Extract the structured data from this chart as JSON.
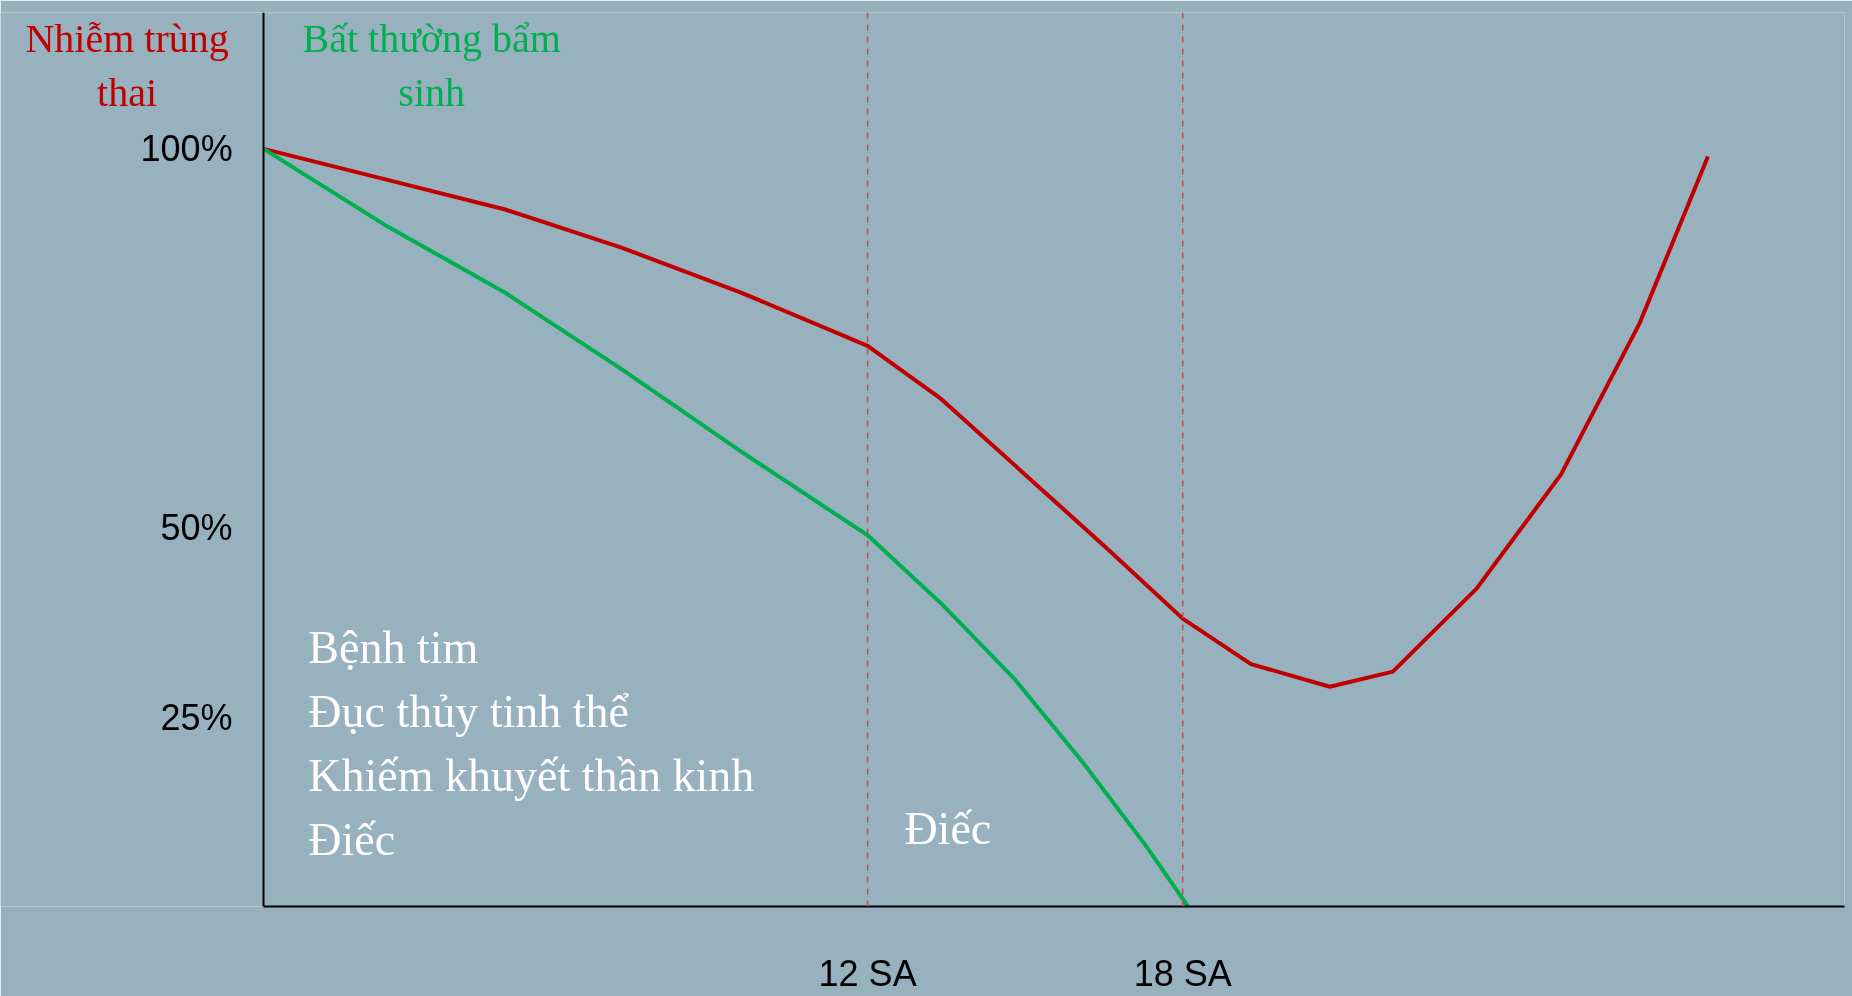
{
  "chart_data": {
    "type": "line",
    "x": [
      0.5,
      2.8,
      5.1,
      7.3,
      9.6,
      12,
      13.4,
      15.0,
      16.6,
      18,
      19.3,
      20.8,
      22.0,
      23.6,
      25.2,
      26.7,
      28.0
    ],
    "series": [
      {
        "name": "Nhiễm trùng thai",
        "color": "#c00000",
        "values": [
          100,
          96,
          92,
          87,
          81,
          74,
          67,
          57,
          47,
          38,
          32,
          29,
          31,
          42,
          57,
          77,
          99
        ]
      },
      {
        "name": "Bất thường bẩm sinh",
        "color": "#00b050",
        "x": [
          0.5,
          2.8,
          5.1,
          7.3,
          9.6,
          12,
          13.4,
          14.8,
          16.1,
          17.3,
          18.1
        ],
        "values": [
          100,
          90,
          81,
          71,
          60,
          49,
          40,
          30,
          19,
          8,
          0
        ]
      }
    ],
    "xlim": [
      0.5,
      30.6
    ],
    "ylim": [
      0,
      118
    ],
    "xticks": [
      {
        "value": 12,
        "label": "12 SA"
      },
      {
        "value": 18,
        "label": "18 SA"
      }
    ],
    "yticks": [
      {
        "value": 25,
        "label": "25%"
      },
      {
        "value": 50,
        "label": "50%"
      },
      {
        "value": 100,
        "label": "100%"
      }
    ],
    "ref_lines": [
      {
        "axis": "x",
        "value": 12,
        "color": "#c0504d",
        "line_style": "dashed"
      },
      {
        "axis": "x",
        "value": 18,
        "color": "#c0504d",
        "line_style": "dashed"
      }
    ],
    "annotations": [
      "Bệnh tim\nĐục thủy tinh thể\nKhiếm khuyết thần kinh\nĐiếc",
      "Điếc"
    ],
    "grid": false,
    "legend": false,
    "marker": "none",
    "line_style": "solid"
  }
}
